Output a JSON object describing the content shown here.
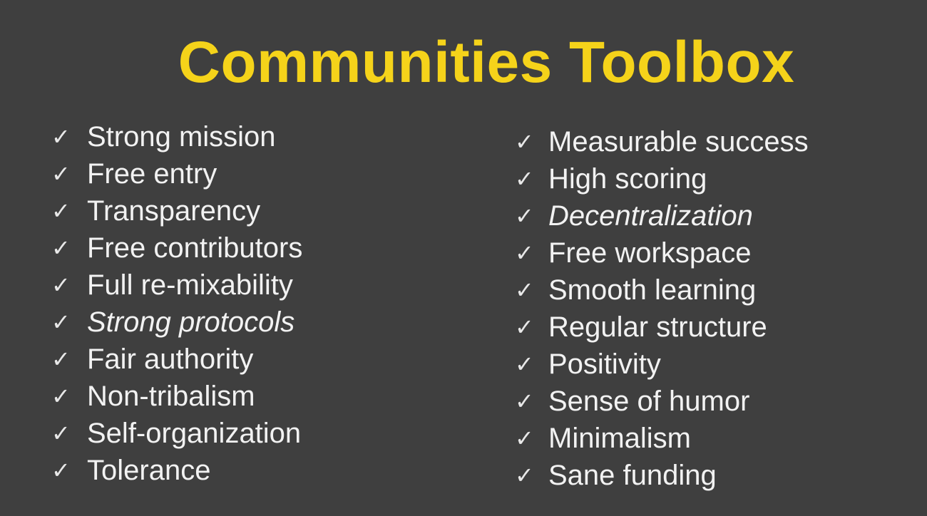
{
  "slide": {
    "title": "Communities Toolbox",
    "check_glyph": "✓",
    "colors": {
      "background": "#3f3f3f",
      "title": "#f5d31a",
      "text": "#f2f2f2"
    },
    "left_items": [
      {
        "label": "Strong mission",
        "italic": false
      },
      {
        "label": "Free entry",
        "italic": false
      },
      {
        "label": "Transparency",
        "italic": false
      },
      {
        "label": "Free contributors",
        "italic": false
      },
      {
        "label": "Full re-mixability",
        "italic": false
      },
      {
        "label": "Strong protocols",
        "italic": true
      },
      {
        "label": "Fair authority",
        "italic": false
      },
      {
        "label": "Non-tribalism",
        "italic": false
      },
      {
        "label": "Self-organization",
        "italic": false
      },
      {
        "label": "Tolerance",
        "italic": false
      }
    ],
    "right_items": [
      {
        "label": "Measurable success",
        "italic": false
      },
      {
        "label": "High scoring",
        "italic": false
      },
      {
        "label": "Decentralization",
        "italic": true
      },
      {
        "label": "Free workspace",
        "italic": false
      },
      {
        "label": "Smooth learning",
        "italic": false
      },
      {
        "label": "Regular structure",
        "italic": false
      },
      {
        "label": "Positivity",
        "italic": false
      },
      {
        "label": "Sense of humor",
        "italic": false
      },
      {
        "label": "Minimalism",
        "italic": false
      },
      {
        "label": "Sane funding",
        "italic": false
      }
    ]
  }
}
